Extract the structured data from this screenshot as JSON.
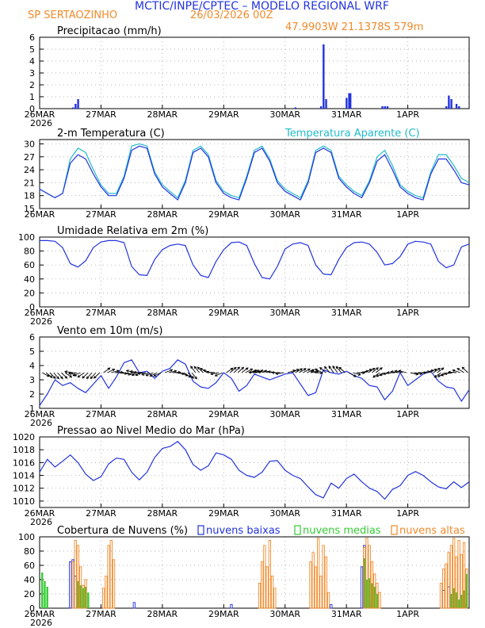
{
  "header": {
    "title": "MCTIC/INPE/CPTEC – MODELO REGIONAL WRF",
    "location": "SP SERTAOZINHO",
    "run": "26/03/2026 00Z",
    "coords": "47.9903W 21.1378S 579m",
    "title_color": "#2233dd",
    "accent_color": "#f08a2a"
  },
  "x_axis": {
    "days": [
      "26MAR",
      "27MAR",
      "28MAR",
      "29MAR",
      "30MAR",
      "31MAR",
      "1APR"
    ],
    "year": "2026",
    "hours_per_day": 24,
    "total_hours": 168
  },
  "chart_data": [
    {
      "type": "bar",
      "title": "Precipitacao (mm/h)",
      "ylim": [
        0,
        6
      ],
      "yticks": [
        0,
        1,
        2,
        3,
        4,
        5,
        6
      ],
      "x": [
        13,
        14,
        15,
        100,
        110,
        111,
        112,
        120,
        121,
        121.5,
        134,
        135,
        136,
        159,
        160,
        161,
        163,
        164
      ],
      "values": [
        0.1,
        0.4,
        0.8,
        0.1,
        0.2,
        5.4,
        0.8,
        0.9,
        1.3,
        1.3,
        0.2,
        0.2,
        0.2,
        0.2,
        1.1,
        0.8,
        0.4,
        0.2
      ],
      "color": "#2233dd"
    },
    {
      "type": "line",
      "title": "2-m Temperatura (C)",
      "legend_extra": "Temperatura Aparente (C)",
      "legend_extra_color": "#22bbcc",
      "ylim": [
        15,
        31
      ],
      "yticks": [
        15,
        18,
        21,
        24,
        27,
        30
      ],
      "series": [
        {
          "name": "Temperatura",
          "color": "#2233dd",
          "x": [
            0,
            3,
            6,
            9,
            12,
            15,
            18,
            21,
            24,
            27,
            30,
            33,
            36,
            39,
            42,
            45,
            48,
            51,
            54,
            57,
            60,
            63,
            66,
            69,
            72,
            75,
            78,
            81,
            84,
            87,
            90,
            93,
            96,
            99,
            102,
            105,
            108,
            111,
            114,
            117,
            120,
            123,
            126,
            129,
            132,
            135,
            138,
            141,
            144,
            147,
            150,
            153,
            156,
            159,
            162,
            165,
            168
          ],
          "values": [
            19.5,
            18.5,
            17.5,
            18.5,
            25.5,
            27.5,
            26.5,
            23,
            20,
            18,
            18,
            22,
            28.5,
            29.5,
            29,
            23,
            20,
            18.5,
            17,
            21,
            28,
            29,
            27,
            21,
            18.5,
            17.5,
            17,
            22,
            28,
            29,
            26,
            21,
            19,
            18,
            17,
            21,
            28,
            29,
            28,
            22,
            20,
            18.5,
            17.5,
            21,
            26,
            27.5,
            24,
            20,
            18.5,
            17.5,
            17,
            23,
            26.5,
            26.5,
            24,
            21,
            20.5
          ]
        },
        {
          "name": "Temperatura Aparente",
          "color": "#22bbcc",
          "x": [
            0,
            3,
            6,
            9,
            12,
            15,
            18,
            21,
            24,
            27,
            30,
            33,
            36,
            39,
            42,
            45,
            48,
            51,
            54,
            57,
            60,
            63,
            66,
            69,
            72,
            75,
            78,
            81,
            84,
            87,
            90,
            93,
            96,
            99,
            102,
            105,
            108,
            111,
            114,
            117,
            120,
            123,
            126,
            129,
            132,
            135,
            138,
            141,
            144,
            147,
            150,
            153,
            156,
            159,
            162,
            165,
            168
          ],
          "values": [
            19.5,
            18.5,
            17.5,
            18.5,
            26.5,
            29,
            28,
            24,
            20.5,
            18.5,
            18.5,
            22.5,
            29.5,
            30,
            29.5,
            23.5,
            20.5,
            19,
            17.5,
            21.5,
            28.5,
            29.5,
            27.5,
            21.5,
            19,
            18,
            17.5,
            22.5,
            28.5,
            29.5,
            26.5,
            21.5,
            19.5,
            18.5,
            17.5,
            21.5,
            28.5,
            29.5,
            28.5,
            22.5,
            20.5,
            19,
            18,
            21.5,
            27,
            28.5,
            25,
            20.5,
            19,
            18,
            17.5,
            23.5,
            27.5,
            27.5,
            25,
            22,
            21
          ]
        }
      ]
    },
    {
      "type": "line",
      "title": "Umidade Relativa em 2m (%)",
      "ylim": [
        0,
        100
      ],
      "yticks": [
        0,
        20,
        40,
        60,
        80,
        100
      ],
      "series": [
        {
          "name": "Umidade Relativa",
          "color": "#2233dd",
          "x": [
            0,
            3,
            6,
            9,
            12,
            15,
            18,
            21,
            24,
            27,
            30,
            33,
            36,
            39,
            42,
            45,
            48,
            51,
            54,
            57,
            60,
            63,
            66,
            69,
            72,
            75,
            78,
            81,
            84,
            87,
            90,
            93,
            96,
            99,
            102,
            105,
            108,
            111,
            114,
            117,
            120,
            123,
            126,
            129,
            132,
            135,
            138,
            141,
            144,
            147,
            150,
            153,
            156,
            159,
            162,
            165,
            168
          ],
          "values": [
            95,
            95,
            94,
            85,
            62,
            57,
            66,
            85,
            93,
            95,
            95,
            92,
            58,
            46,
            45,
            68,
            82,
            88,
            90,
            88,
            60,
            45,
            42,
            65,
            82,
            92,
            93,
            88,
            62,
            42,
            40,
            58,
            83,
            90,
            92,
            88,
            60,
            47,
            46,
            68,
            85,
            92,
            93,
            90,
            78,
            60,
            62,
            72,
            90,
            94,
            93,
            90,
            65,
            56,
            60,
            86,
            90
          ]
        }
      ]
    },
    {
      "type": "line",
      "title": "Vento em 10m (m/s)",
      "ylim": [
        1,
        6
      ],
      "yticks": [
        1,
        2,
        3,
        4,
        5,
        6
      ],
      "series": [
        {
          "name": "Vento",
          "color": "#2233dd",
          "x": [
            0,
            3,
            6,
            9,
            12,
            15,
            18,
            21,
            24,
            27,
            30,
            33,
            36,
            39,
            42,
            45,
            48,
            51,
            54,
            57,
            60,
            63,
            66,
            69,
            72,
            75,
            78,
            81,
            84,
            87,
            90,
            93,
            96,
            99,
            102,
            105,
            108,
            111,
            114,
            117,
            120,
            123,
            126,
            129,
            132,
            135,
            138,
            141,
            144,
            147,
            150,
            153,
            156,
            159,
            162,
            165,
            168
          ],
          "values": [
            1.2,
            2.0,
            3.0,
            2.6,
            2.8,
            2.4,
            2.1,
            2.7,
            3.3,
            2.4,
            3.2,
            4.2,
            4.4,
            3.5,
            3.6,
            3.1,
            3.6,
            3.8,
            4.4,
            4.1,
            2.9,
            2.5,
            2.4,
            2.8,
            3.5,
            3.1,
            2.2,
            2.6,
            3.4,
            3.2,
            3.0,
            3.2,
            3.4,
            3.5,
            2.7,
            1.9,
            2.1,
            3.7,
            3.5,
            3.4,
            3.6,
            3.3,
            3.1,
            2.6,
            2.5,
            1.6,
            2.2,
            3.5,
            2.6,
            3.0,
            3.4,
            3.6,
            2.9,
            2.5,
            2.4,
            1.5,
            2.3
          ]
        }
      ]
    },
    {
      "type": "line",
      "title": "Pressao ao Nivel Medio do Mar (hPa)",
      "ylim": [
        1009,
        1020
      ],
      "yticks": [
        1010,
        1012,
        1014,
        1016,
        1018,
        1020
      ],
      "series": [
        {
          "name": "Pressao",
          "color": "#2233dd",
          "x": [
            0,
            3,
            6,
            9,
            12,
            15,
            18,
            21,
            24,
            27,
            30,
            33,
            36,
            39,
            42,
            45,
            48,
            51,
            54,
            57,
            60,
            63,
            66,
            69,
            72,
            75,
            78,
            81,
            84,
            87,
            90,
            93,
            96,
            99,
            102,
            105,
            108,
            111,
            114,
            117,
            120,
            123,
            126,
            129,
            132,
            135,
            138,
            141,
            144,
            147,
            150,
            153,
            156,
            159,
            162,
            165,
            168
          ],
          "values": [
            1014.5,
            1016.5,
            1015.3,
            1016.2,
            1017.2,
            1016.0,
            1014.2,
            1013.2,
            1013.8,
            1015.8,
            1016.7,
            1016.5,
            1014.5,
            1013.3,
            1014.5,
            1016.8,
            1018.2,
            1018.5,
            1019.3,
            1018.0,
            1015.7,
            1014.8,
            1015.5,
            1017.5,
            1017.2,
            1016.5,
            1014.8,
            1014.0,
            1013.7,
            1014.5,
            1016.2,
            1016.3,
            1014.8,
            1014.0,
            1013.5,
            1012.2,
            1011.0,
            1010.5,
            1012.8,
            1012.0,
            1013.5,
            1014.2,
            1013.0,
            1012.0,
            1011.5,
            1010.3,
            1011.8,
            1012.4,
            1014.0,
            1014.6,
            1014.0,
            1013.0,
            1012.2,
            1011.9,
            1013.0,
            1012.1,
            1013.0
          ]
        }
      ]
    },
    {
      "type": "bar",
      "title": "Cobertura de Nuvens (%)",
      "ylim": [
        0,
        100
      ],
      "yticks": [
        0,
        20,
        40,
        60,
        80,
        100
      ],
      "series": [
        {
          "name": "nuvens baixas",
          "color": "#2233dd",
          "style": "outline",
          "x": [
            12,
            13,
            14,
            37,
            75,
            114,
            126,
            127,
            128,
            129,
            130,
            158,
            160,
            162,
            165,
            166,
            167
          ],
          "values": [
            65,
            68,
            45,
            8,
            5,
            5,
            58,
            88,
            28,
            10,
            5,
            25,
            30,
            22,
            18,
            8,
            5
          ]
        },
        {
          "name": "nuvens medias",
          "color": "#33cc33",
          "style": "filled",
          "x": [
            1,
            2,
            3,
            15,
            16,
            17,
            18,
            19,
            127,
            128,
            129,
            130,
            131,
            132,
            161,
            162,
            163,
            164,
            165,
            166,
            167
          ],
          "values": [
            50,
            38,
            30,
            38,
            32,
            28,
            30,
            22,
            70,
            40,
            42,
            35,
            30,
            20,
            20,
            28,
            22,
            12,
            18,
            25,
            48
          ]
        },
        {
          "name": "nuvens altas",
          "color": "#f08a2a",
          "style": "outline",
          "x": [
            13,
            14,
            15,
            16,
            17,
            18,
            25,
            26,
            27,
            28,
            29,
            86,
            87,
            88,
            89,
            90,
            91,
            92,
            106,
            107,
            108,
            109,
            110,
            111,
            112,
            113,
            127,
            128,
            129,
            130,
            131,
            132,
            133,
            157,
            158,
            159,
            160,
            161,
            162,
            163,
            164,
            165,
            166,
            167
          ],
          "values": [
            65,
            95,
            88,
            58,
            32,
            40,
            28,
            45,
            88,
            95,
            68,
            35,
            65,
            88,
            58,
            95,
            45,
            28,
            65,
            78,
            58,
            98,
            45,
            88,
            72,
            22,
            85,
            98,
            88,
            65,
            48,
            35,
            22,
            35,
            55,
            62,
            78,
            88,
            98,
            72,
            95,
            75,
            92,
            55
          ]
        }
      ]
    }
  ]
}
